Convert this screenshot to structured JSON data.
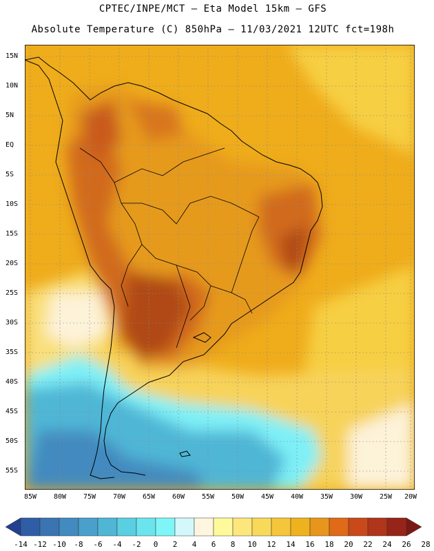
{
  "header": {
    "line1": "CPTEC/INPE/MCT –  Eta Model 15km – GFS",
    "line2": "Absolute Temperature (C) 850hPa – 11/03/2021 12UTC fct=198h"
  },
  "map": {
    "lat_labels": [
      "15N",
      "10N",
      "5N",
      "EQ",
      "5S",
      "10S",
      "15S",
      "20S",
      "25S",
      "30S",
      "35S",
      "40S",
      "45S",
      "50S",
      "55S"
    ],
    "lon_labels": [
      "85W",
      "80W",
      "75W",
      "70W",
      "65W",
      "60W",
      "55W",
      "50W",
      "45W",
      "40W",
      "35W",
      "30W",
      "25W",
      "20W"
    ],
    "colors": {
      "ocean_warm": "#efac1b",
      "ocean_mild": "#f7cf43",
      "land_hot": "#cb5a1b",
      "land_very_hot": "#9c3515",
      "cold_south": "#4fbcd8",
      "grid": "#8a8a8a",
      "coast": "#000000"
    }
  },
  "colorbar": {
    "labels": [
      "-14",
      "-12",
      "-10",
      "-8",
      "-6",
      "-4",
      "-2",
      "0",
      "2",
      "4",
      "6",
      "8",
      "10",
      "12",
      "14",
      "16",
      "18",
      "20",
      "22",
      "24",
      "26",
      "28"
    ],
    "colors": [
      "#233f8f",
      "#2f5ea6",
      "#3a74b3",
      "#428abf",
      "#4aa0cb",
      "#50b6d6",
      "#5acfe2",
      "#6ae5ee",
      "#7ef6f7",
      "#d3f7fb",
      "#fef6df",
      "#fefa9b",
      "#fde67c",
      "#f9d95a",
      "#f5c63b",
      "#efb21f",
      "#e8951c",
      "#df6a18",
      "#c9491a",
      "#b0351a",
      "#962418",
      "#7a1816"
    ]
  }
}
